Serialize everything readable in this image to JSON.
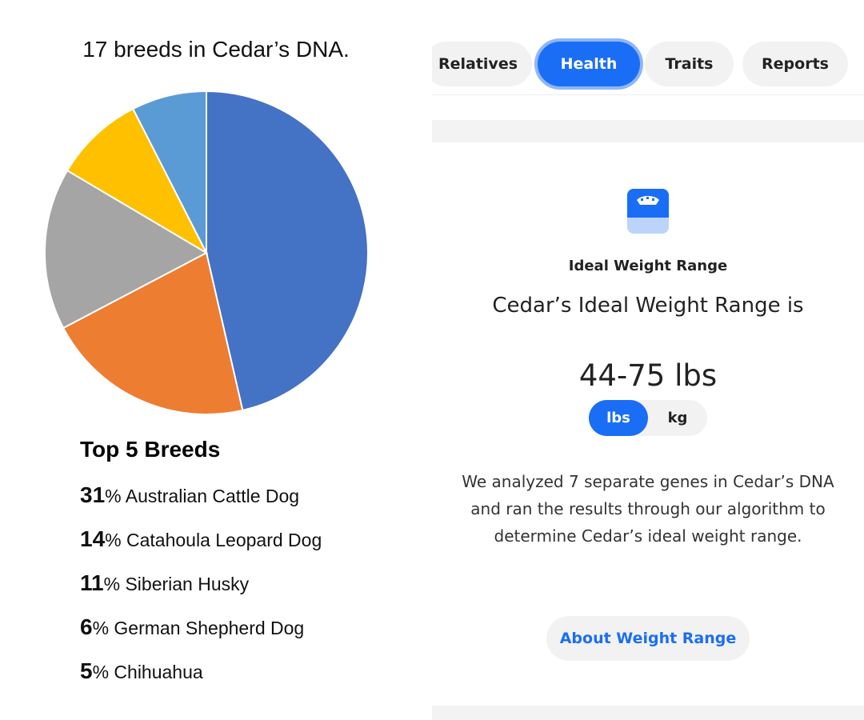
{
  "chart_data": {
    "type": "pie",
    "title": "17 breeds in Cedar’s DNA.",
    "categories": [
      null,
      null,
      null,
      null,
      null
    ],
    "values": [
      46.4,
      20.9,
      16.2,
      9,
      7.5
    ],
    "colors": [
      "#4472c4",
      "#ed7d31",
      "#a5a5a5",
      "#ffc000",
      "#5b9bd5"
    ]
  },
  "top_breeds": {
    "title": "Top 5 Breeds",
    "items": [
      {
        "value": 31,
        "unit": "%",
        "name": "Australian Cattle Dog"
      },
      {
        "value": 14,
        "unit": "%",
        "name": "Catahoula Leopard Dog"
      },
      {
        "value": 11,
        "unit": "%",
        "name": "Siberian Husky"
      },
      {
        "value": 6,
        "unit": "%",
        "name": "German Shepherd Dog"
      },
      {
        "value": 5,
        "unit": "%",
        "name": "Chihuahua"
      }
    ]
  },
  "tabs": [
    "Relatives",
    "Health",
    "Traits",
    "Reports"
  ],
  "card": {
    "heading": "Ideal Weight Range",
    "subtitle": "Cedar’s Ideal Weight Range is",
    "range": "44-75 lbs",
    "units": [
      "lbs",
      "kg"
    ],
    "description": "We analyzed 7 separate genes in Cedar’s DNA and ran the results through our algorithm to determine Cedar’s ideal weight range.",
    "button": "About Weight Range"
  }
}
